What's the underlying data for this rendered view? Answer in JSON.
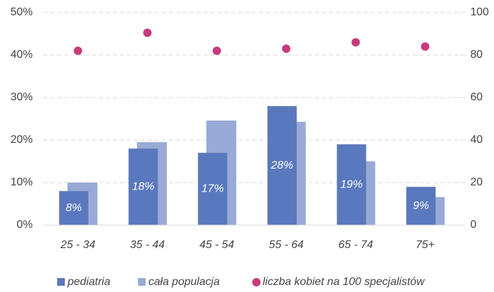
{
  "chart_data": {
    "type": "bar",
    "categories": [
      "25 - 34",
      "35 - 44",
      "45 - 54",
      "55 - 64",
      "65 - 74",
      "75+"
    ],
    "series": [
      {
        "name": "pediatria",
        "color": "#5a78bd",
        "values": [
          8,
          18,
          17,
          28,
          19,
          9
        ],
        "value_labels": [
          "8%",
          "18%",
          "17%",
          "28%",
          "19%",
          "9%"
        ]
      },
      {
        "name": "cała populacja",
        "color": "#99aad6",
        "values": [
          10,
          19.5,
          24.6,
          24.3,
          15,
          6.6
        ]
      },
      {
        "name": "liczba kobiet na 100 specjalistów",
        "type": "scatter",
        "axis": "y2",
        "color": "#c83a7d",
        "values": [
          82,
          90.5,
          82,
          83,
          86,
          84
        ]
      }
    ],
    "ylim": [
      0,
      50
    ],
    "yticks": [
      {
        "value": 0,
        "label": "0%"
      },
      {
        "value": 10,
        "label": "10%"
      },
      {
        "value": 20,
        "label": "20%"
      },
      {
        "value": 30,
        "label": "30%"
      },
      {
        "value": 40,
        "label": "40%"
      },
      {
        "value": 50,
        "label": "50%"
      }
    ],
    "y2lim": [
      0,
      100
    ],
    "y2ticks": [
      0,
      20,
      40,
      60,
      80,
      100
    ],
    "grid": true,
    "legend": "bottom"
  }
}
